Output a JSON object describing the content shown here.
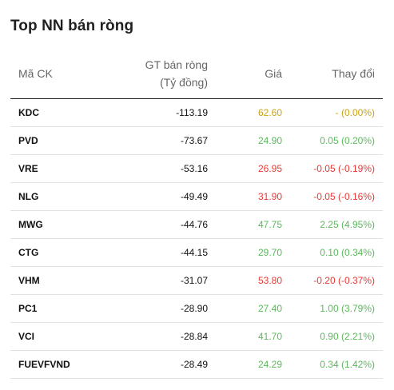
{
  "widget": {
    "title": "Top NN bán ròng"
  },
  "columns": {
    "symbol": "Mã CK",
    "value_line1": "GT bán ròng",
    "value_line2": "(Tỷ đồng)",
    "price": "Giá",
    "change": "Thay đổi"
  },
  "colors": {
    "up": "#5cb85c",
    "down": "#e53935",
    "ref": "#c9a315"
  },
  "rows": [
    {
      "symbol": "KDC",
      "value": "-113.19",
      "price": "62.60",
      "change": "- (0.00%)",
      "status": "ref"
    },
    {
      "symbol": "PVD",
      "value": "-73.67",
      "price": "24.90",
      "change": "0.05 (0.20%)",
      "status": "up"
    },
    {
      "symbol": "VRE",
      "value": "-53.16",
      "price": "26.95",
      "change": "-0.05 (-0.19%)",
      "status": "down"
    },
    {
      "symbol": "NLG",
      "value": "-49.49",
      "price": "31.90",
      "change": "-0.05 (-0.16%)",
      "status": "down"
    },
    {
      "symbol": "MWG",
      "value": "-44.76",
      "price": "47.75",
      "change": "2.25 (4.95%)",
      "status": "up"
    },
    {
      "symbol": "CTG",
      "value": "-44.15",
      "price": "29.70",
      "change": "0.10 (0.34%)",
      "status": "up"
    },
    {
      "symbol": "VHM",
      "value": "-31.07",
      "price": "53.80",
      "change": "-0.20 (-0.37%)",
      "status": "down"
    },
    {
      "symbol": "PC1",
      "value": "-28.90",
      "price": "27.40",
      "change": "1.00 (3.79%)",
      "status": "up"
    },
    {
      "symbol": "VCI",
      "value": "-28.84",
      "price": "41.70",
      "change": "0.90 (2.21%)",
      "status": "up"
    },
    {
      "symbol": "FUEVFVND",
      "value": "-28.49",
      "price": "24.29",
      "change": "0.34 (1.42%)",
      "status": "up"
    }
  ]
}
